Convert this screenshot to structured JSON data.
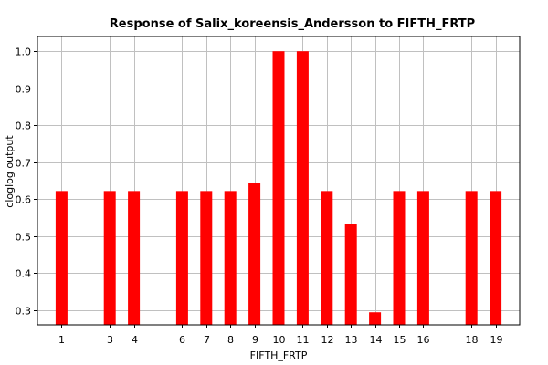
{
  "chart_data": {
    "type": "bar",
    "title": "Response of Salix_koreensis_Andersson to FIFTH_FRTP",
    "xlabel": "FIFTH_FRTP",
    "ylabel": "cloglog output",
    "categories": [
      "1",
      "3",
      "4",
      "6",
      "7",
      "8",
      "9",
      "10",
      "11",
      "12",
      "13",
      "14",
      "15",
      "16",
      "18",
      "19"
    ],
    "x": [
      1,
      3,
      4,
      6,
      7,
      8,
      9,
      10,
      11,
      12,
      13,
      14,
      15,
      16,
      18,
      19
    ],
    "values": [
      0.622,
      0.622,
      0.622,
      0.622,
      0.622,
      0.622,
      0.644,
      1.0,
      1.0,
      0.622,
      0.532,
      0.294,
      0.622,
      0.622,
      0.622,
      0.622
    ],
    "xlim": [
      0,
      20
    ],
    "ylim": [
      0.26,
      1.04
    ],
    "yticks": [
      "0.3",
      "0.4",
      "0.5",
      "0.6",
      "0.7",
      "0.8",
      "0.9",
      "1.0"
    ],
    "bar_color": "#ff0000",
    "grid": true
  }
}
